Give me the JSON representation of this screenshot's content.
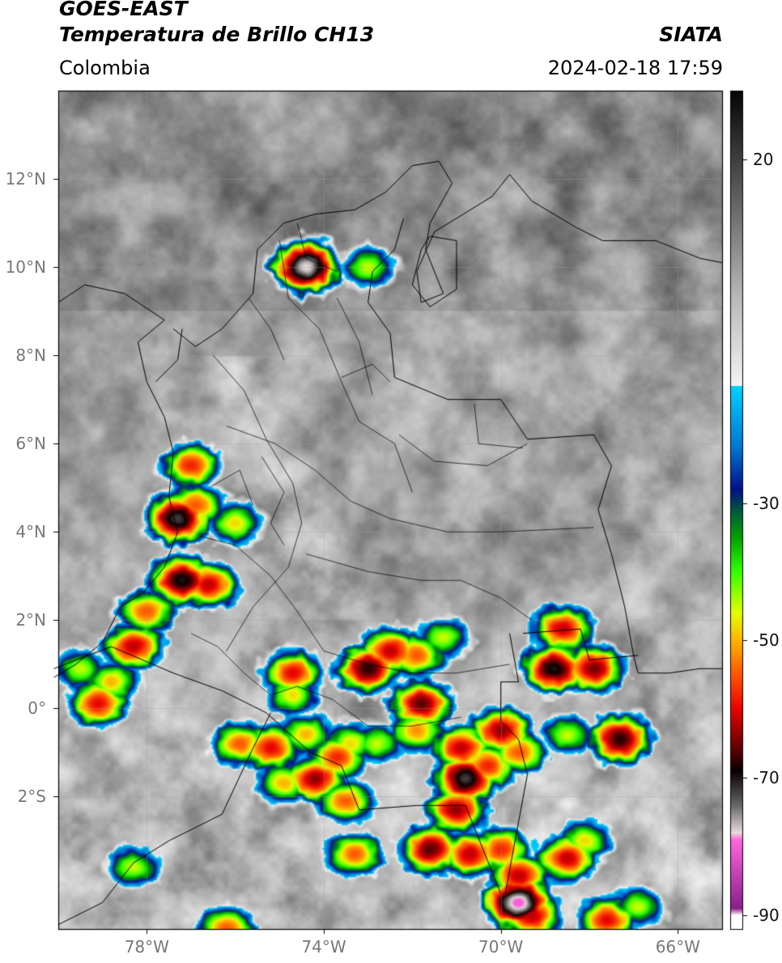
{
  "header": {
    "satellite": "GOES-EAST",
    "product": "Temperatura de Brillo CH13",
    "region": "Colombia",
    "source": "SIATA",
    "datetime": "2024-02-18 17:59"
  },
  "map": {
    "extent": {
      "lon": [
        -80,
        -65
      ],
      "lat": [
        -5,
        14
      ]
    },
    "lat_ticks": [
      {
        "value": 12,
        "label": "12°N"
      },
      {
        "value": 10,
        "label": "10°N"
      },
      {
        "value": 8,
        "label": "8°N"
      },
      {
        "value": 6,
        "label": "6°N"
      },
      {
        "value": 4,
        "label": "4°N"
      },
      {
        "value": 2,
        "label": "2°N"
      },
      {
        "value": 0,
        "label": "0°"
      },
      {
        "value": -2,
        "label": "2°S"
      }
    ],
    "lon_ticks": [
      {
        "value": -78,
        "label": "78°W"
      },
      {
        "value": -74,
        "label": "74°W"
      },
      {
        "value": -70,
        "label": "70°W"
      },
      {
        "value": -66,
        "label": "66°W"
      }
    ],
    "gridlines": true
  },
  "colorbar": {
    "range": [
      -92,
      30
    ],
    "ticks": [
      {
        "value": 20,
        "label": "20"
      },
      {
        "value": -30,
        "label": "-30"
      },
      {
        "value": -50,
        "label": "-50"
      },
      {
        "value": -70,
        "label": "-70"
      },
      {
        "value": -90,
        "label": "-90"
      }
    ],
    "color_stops": [
      {
        "t": 30,
        "color": "#050505"
      },
      {
        "t": 15,
        "color": "#5c5c5c"
      },
      {
        "t": 0,
        "color": "#b8b8b8"
      },
      {
        "t": -13,
        "color": "#f4f4f4"
      },
      {
        "t": -13.01,
        "color": "#00d2ff"
      },
      {
        "t": -22,
        "color": "#0075d0"
      },
      {
        "t": -28,
        "color": "#00108a"
      },
      {
        "t": -31,
        "color": "#005540"
      },
      {
        "t": -35,
        "color": "#00a000"
      },
      {
        "t": -40,
        "color": "#33ff00"
      },
      {
        "t": -46,
        "color": "#e4ff00"
      },
      {
        "t": -50,
        "color": "#ffb400"
      },
      {
        "t": -55,
        "color": "#ff5500"
      },
      {
        "t": -60,
        "color": "#e80000"
      },
      {
        "t": -66,
        "color": "#5a0000"
      },
      {
        "t": -69,
        "color": "#0a0000"
      },
      {
        "t": -74,
        "color": "#666666"
      },
      {
        "t": -78,
        "color": "#e9dada"
      },
      {
        "t": -79,
        "color": "#ff66dd"
      },
      {
        "t": -89,
        "color": "#8a1f8a"
      },
      {
        "t": -90,
        "color": "#ffffff"
      },
      {
        "t": -92,
        "color": "#ffffff"
      }
    ]
  },
  "storm_cells": [
    {
      "lon": -77.2,
      "lat": 2.9,
      "peak": -70
    },
    {
      "lon": -76.6,
      "lat": 2.8,
      "peak": -62
    },
    {
      "lon": -77.3,
      "lat": 4.3,
      "peak": -72
    },
    {
      "lon": -76.9,
      "lat": 4.6,
      "peak": -55
    },
    {
      "lon": -77.0,
      "lat": 5.5,
      "peak": -58
    },
    {
      "lon": -76.0,
      "lat": 4.2,
      "peak": -48
    },
    {
      "lon": -78.0,
      "lat": 2.2,
      "peak": -55
    },
    {
      "lon": -78.3,
      "lat": 1.4,
      "peak": -62
    },
    {
      "lon": -79.1,
      "lat": 0.1,
      "peak": -60
    },
    {
      "lon": -78.8,
      "lat": 0.6,
      "peak": -50
    },
    {
      "lon": -75.2,
      "lat": -0.9,
      "peak": -60
    },
    {
      "lon": -75.9,
      "lat": -0.8,
      "peak": -55
    },
    {
      "lon": -74.2,
      "lat": -1.6,
      "peak": -64
    },
    {
      "lon": -74.9,
      "lat": -1.7,
      "peak": -50
    },
    {
      "lon": -73.7,
      "lat": -1.1,
      "peak": -58
    },
    {
      "lon": -73.5,
      "lat": -2.1,
      "peak": -55
    },
    {
      "lon": -74.4,
      "lat": -0.6,
      "peak": -50
    },
    {
      "lon": -74.7,
      "lat": 0.8,
      "peak": -60
    },
    {
      "lon": -74.7,
      "lat": 0.3,
      "peak": -48
    },
    {
      "lon": -72.5,
      "lat": 1.3,
      "peak": -62
    },
    {
      "lon": -71.9,
      "lat": 1.2,
      "peak": -55
    },
    {
      "lon": -71.8,
      "lat": 0.1,
      "peak": -66
    },
    {
      "lon": -71.9,
      "lat": -0.5,
      "peak": -52
    },
    {
      "lon": -73.0,
      "lat": 0.9,
      "peak": -68
    },
    {
      "lon": -71.3,
      "lat": 1.6,
      "peak": -45
    },
    {
      "lon": -70.9,
      "lat": -0.9,
      "peak": -62
    },
    {
      "lon": -70.0,
      "lat": -0.5,
      "peak": -64
    },
    {
      "lon": -69.6,
      "lat": -1.0,
      "peak": -55
    },
    {
      "lon": -70.3,
      "lat": -1.3,
      "peak": -58
    },
    {
      "lon": -70.8,
      "lat": -1.6,
      "peak": -72
    },
    {
      "lon": -71.0,
      "lat": -2.3,
      "peak": -64
    },
    {
      "lon": -70.7,
      "lat": -3.3,
      "peak": -62
    },
    {
      "lon": -70.0,
      "lat": -3.2,
      "peak": -58
    },
    {
      "lon": -71.6,
      "lat": -3.2,
      "peak": -66
    },
    {
      "lon": -69.6,
      "lat": -3.8,
      "peak": -62
    },
    {
      "lon": -69.6,
      "lat": -4.4,
      "peak": -80
    },
    {
      "lon": -69.3,
      "lat": -4.7,
      "peak": -62
    },
    {
      "lon": -68.5,
      "lat": -3.4,
      "peak": -62
    },
    {
      "lon": -68.1,
      "lat": -3.0,
      "peak": -48
    },
    {
      "lon": -67.6,
      "lat": -4.8,
      "peak": -60
    },
    {
      "lon": -66.9,
      "lat": -4.5,
      "peak": -45
    },
    {
      "lon": -68.8,
      "lat": 0.9,
      "peak": -70
    },
    {
      "lon": -68.6,
      "lat": 1.8,
      "peak": -62
    },
    {
      "lon": -67.3,
      "lat": -0.7,
      "peak": -68
    },
    {
      "lon": -67.9,
      "lat": 0.9,
      "peak": -65
    },
    {
      "lon": -68.5,
      "lat": -0.6,
      "peak": -45
    },
    {
      "lon": -74.4,
      "lat": 10.0,
      "peak": -78
    },
    {
      "lon": -73.0,
      "lat": 10.0,
      "peak": -45
    },
    {
      "lon": -73.3,
      "lat": -3.3,
      "peak": -55
    },
    {
      "lon": -76.2,
      "lat": -5.0,
      "peak": -55
    },
    {
      "lon": -78.3,
      "lat": -3.6,
      "peak": -45
    },
    {
      "lon": -79.5,
      "lat": 0.9,
      "peak": -45
    },
    {
      "lon": -72.8,
      "lat": -0.8,
      "peak": -45
    },
    {
      "lon": -73.4,
      "lat": -0.8,
      "peak": -48
    }
  ]
}
